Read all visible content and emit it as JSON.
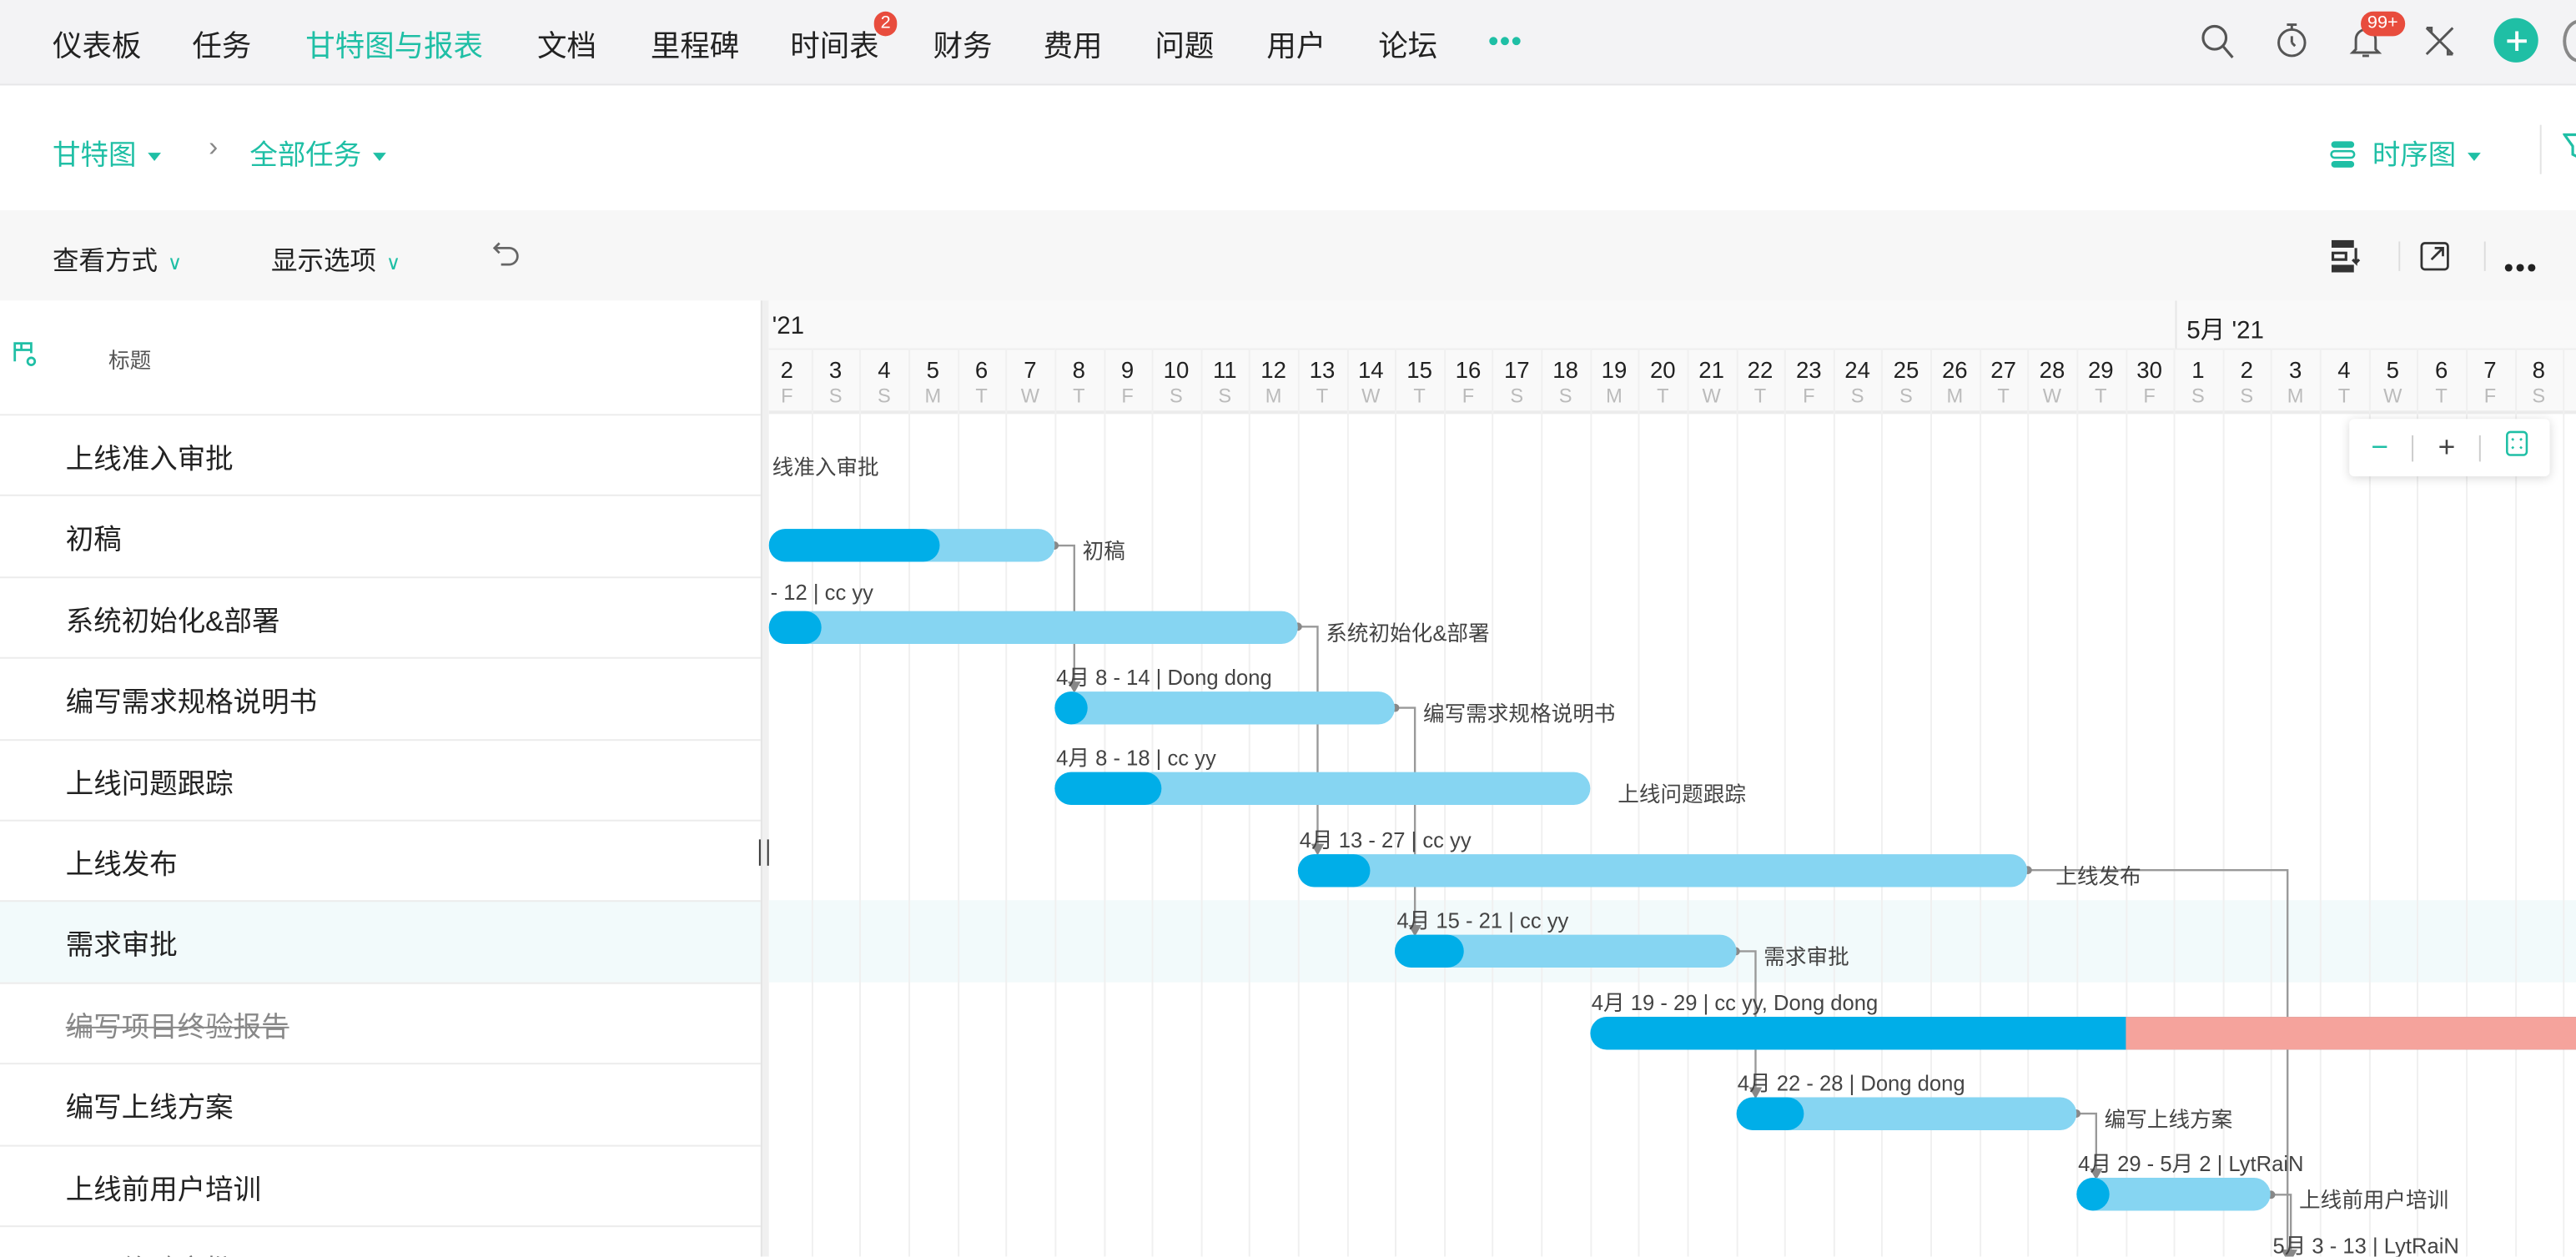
{
  "nav": {
    "items": [
      "仪表板",
      "任务",
      "甘特图与报表",
      "文档",
      "里程碑",
      "时间表",
      "财务",
      "费用",
      "问题",
      "用户",
      "论坛"
    ],
    "active": "甘特图与报表",
    "timesheet_badge": "2",
    "notification_badge": "99+",
    "more_icon": "ellipsis-icon",
    "accent": "#1fbfa5"
  },
  "breadcrumb": {
    "gantt": "甘特图",
    "all_tasks": "全部任务",
    "view_mode": "时序图"
  },
  "toolbar": {
    "view_by": "查看方式",
    "display_options": "显示选项"
  },
  "left": {
    "header": "标题"
  },
  "timeline": {
    "months": [
      "'21",
      "5月 '21"
    ],
    "days": [
      {
        "d": "2",
        "w": "F"
      },
      {
        "d": "3",
        "w": "S"
      },
      {
        "d": "4",
        "w": "S"
      },
      {
        "d": "5",
        "w": "M"
      },
      {
        "d": "6",
        "w": "T"
      },
      {
        "d": "7",
        "w": "W"
      },
      {
        "d": "8",
        "w": "T"
      },
      {
        "d": "9",
        "w": "F"
      },
      {
        "d": "10",
        "w": "S"
      },
      {
        "d": "11",
        "w": "S"
      },
      {
        "d": "12",
        "w": "M"
      },
      {
        "d": "13",
        "w": "T"
      },
      {
        "d": "14",
        "w": "W"
      },
      {
        "d": "15",
        "w": "T"
      },
      {
        "d": "16",
        "w": "F"
      },
      {
        "d": "17",
        "w": "S"
      },
      {
        "d": "18",
        "w": "S"
      },
      {
        "d": "19",
        "w": "M"
      },
      {
        "d": "20",
        "w": "T"
      },
      {
        "d": "21",
        "w": "W"
      },
      {
        "d": "22",
        "w": "T"
      },
      {
        "d": "23",
        "w": "F"
      },
      {
        "d": "24",
        "w": "S"
      },
      {
        "d": "25",
        "w": "S"
      },
      {
        "d": "26",
        "w": "M"
      },
      {
        "d": "27",
        "w": "T"
      },
      {
        "d": "28",
        "w": "W"
      },
      {
        "d": "29",
        "w": "T"
      },
      {
        "d": "30",
        "w": "F"
      },
      {
        "d": "1",
        "w": "S"
      },
      {
        "d": "2",
        "w": "S"
      },
      {
        "d": "3",
        "w": "M"
      },
      {
        "d": "4",
        "w": "T"
      },
      {
        "d": "5",
        "w": "W"
      },
      {
        "d": "6",
        "w": "T"
      },
      {
        "d": "7",
        "w": "F"
      },
      {
        "d": "8",
        "w": "S"
      }
    ],
    "zoom_out": "−",
    "zoom_in": "+"
  },
  "tasks": [
    {
      "name": "上线准入审批",
      "milestone_label": "线准入审批",
      "start": "4-1",
      "end": "4-1",
      "progress": 0,
      "top_label": "",
      "side_label": ""
    },
    {
      "name": "初稿",
      "start": "3-31",
      "end": "4-7",
      "progress": 0.6,
      "top_label": "",
      "side_label": "初稿"
    },
    {
      "name": "系统初始化&部署",
      "start": "3-31",
      "end": "4-12",
      "progress": 0.1,
      "top_label": "- 12 | cc yy",
      "side_label": "系统初始化&部署"
    },
    {
      "name": "编写需求规格说明书",
      "start": "4-8",
      "end": "4-14",
      "progress": 0.05,
      "top_label": "4月 8 - 14 | Dong dong",
      "side_label": "编写需求规格说明书"
    },
    {
      "name": "上线问题跟踪",
      "start": "4-8",
      "end": "4-18",
      "progress": 0.2,
      "top_label": "4月 8 - 18 | cc yy",
      "side_label": "上线问题跟踪"
    },
    {
      "name": "上线发布",
      "start": "4-13",
      "end": "4-27",
      "progress": 0.1,
      "top_label": "4月 13 - 27 | cc yy",
      "side_label": "上线发布"
    },
    {
      "name": "需求审批",
      "start": "4-15",
      "end": "4-21",
      "progress": 0.2,
      "top_label": "4月 15 - 21 | cc yy",
      "side_label": "需求审批",
      "selected": true
    },
    {
      "name": "编写项目终验报告",
      "start": "4-19",
      "end": "4-29",
      "progress": 1,
      "overdue_until": "6-30",
      "completed": true,
      "top_label": "4月 19 - 29 | cc yy, Dong dong",
      "side_label": ""
    },
    {
      "name": "编写上线方案",
      "start": "4-22",
      "end": "4-28",
      "progress": 0.2,
      "top_label": "4月 22 - 28 | Dong dong",
      "side_label": "编写上线方案"
    },
    {
      "name": "上线前用户培训",
      "start": "4-29",
      "end": "5-2",
      "progress": 0.05,
      "top_label": "4月 29 - 5月 2 | LytRaiN",
      "side_label": "上线前用户培训"
    },
    {
      "name": "项目终验审批",
      "start": "5-3",
      "end": "5-13",
      "progress": 0.1,
      "top_label": "5月 3 - 13 | LytRaiN",
      "side_label": ""
    }
  ],
  "links": [
    [
      1,
      3
    ],
    [
      2,
      5
    ],
    [
      3,
      6
    ],
    [
      6,
      8
    ],
    [
      5,
      10
    ],
    [
      8,
      9
    ],
    [
      9,
      10
    ]
  ],
  "colors": {
    "bar": "#86d5f2",
    "progress": "#00aee8",
    "overdue": "#f5a39c",
    "selected_row": "#f2fafb"
  }
}
